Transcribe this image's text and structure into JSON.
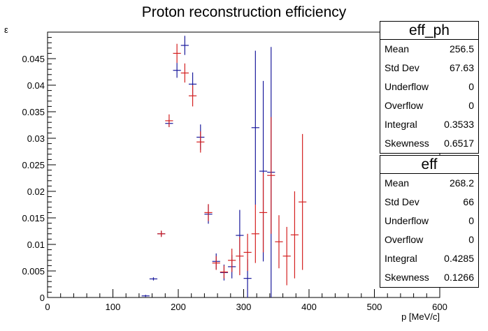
{
  "chart_data": {
    "type": "scatter",
    "title": "Proton reconstruction efficiency",
    "xlabel": "p [MeV/c]",
    "ylabel": "ε",
    "xlim": [
      0,
      600
    ],
    "ylim": [
      0,
      0.05
    ],
    "x_ticks": [
      0,
      100,
      200,
      300,
      400,
      500,
      600
    ],
    "y_ticks": [
      0,
      0.005,
      0.01,
      0.015,
      0.02,
      0.025,
      0.03,
      0.035,
      0.04,
      0.045
    ],
    "y_tick_labels": [
      "0",
      "0.005",
      "0.01",
      "0.015",
      "0.02",
      "0.025",
      "0.03",
      "0.035",
      "0.04",
      "0.045"
    ],
    "bin_width": 12,
    "grid": false,
    "series": [
      {
        "color": "#1a1a9c",
        "points": [
          {
            "x": 150,
            "y": 0.0003,
            "err": 0.0002
          },
          {
            "x": 162,
            "y": 0.0035,
            "err": 0.0003
          },
          {
            "x": 174,
            "y": 0.012,
            "err": 0.0005
          },
          {
            "x": 186,
            "y": 0.0328,
            "err": 0.0007
          },
          {
            "x": 198,
            "y": 0.0428,
            "err": 0.0014
          },
          {
            "x": 210,
            "y": 0.0475,
            "err": 0.0018
          },
          {
            "x": 222,
            "y": 0.0402,
            "err": 0.0022
          },
          {
            "x": 234,
            "y": 0.0302,
            "err": 0.0024
          },
          {
            "x": 246,
            "y": 0.0157,
            "err": 0.0018
          },
          {
            "x": 258,
            "y": 0.0068,
            "err": 0.0015
          },
          {
            "x": 270,
            "y": 0.0047,
            "err": 0.0015
          },
          {
            "x": 282,
            "y": 0.0058,
            "err": 0.0022
          },
          {
            "x": 294,
            "y": 0.0117,
            "err": 0.0048
          },
          {
            "x": 306,
            "y": 0.0036,
            "err": 0.0036
          },
          {
            "x": 318,
            "y": 0.032,
            "err": 0.0145
          },
          {
            "x": 330,
            "y": 0.0238,
            "err": 0.017
          },
          {
            "x": 342,
            "y": 0.0236,
            "err": 0.0236
          }
        ]
      },
      {
        "color": "#d42020",
        "points": [
          {
            "x": 174,
            "y": 0.012,
            "err": 0.0006
          },
          {
            "x": 186,
            "y": 0.0333,
            "err": 0.0012
          },
          {
            "x": 198,
            "y": 0.046,
            "err": 0.0018
          },
          {
            "x": 210,
            "y": 0.0423,
            "err": 0.0018
          },
          {
            "x": 222,
            "y": 0.038,
            "err": 0.002
          },
          {
            "x": 234,
            "y": 0.0293,
            "err": 0.002
          },
          {
            "x": 246,
            "y": 0.016,
            "err": 0.0016
          },
          {
            "x": 258,
            "y": 0.0065,
            "err": 0.0013
          },
          {
            "x": 270,
            "y": 0.0048,
            "err": 0.0012
          },
          {
            "x": 282,
            "y": 0.007,
            "err": 0.0022
          },
          {
            "x": 294,
            "y": 0.0078,
            "err": 0.0036
          },
          {
            "x": 306,
            "y": 0.0085,
            "err": 0.0035
          },
          {
            "x": 318,
            "y": 0.012,
            "err": 0.0055
          },
          {
            "x": 330,
            "y": 0.016,
            "err": 0.0075
          },
          {
            "x": 342,
            "y": 0.023,
            "err": 0.011
          },
          {
            "x": 354,
            "y": 0.0105,
            "err": 0.005
          },
          {
            "x": 366,
            "y": 0.0078,
            "err": 0.0055
          },
          {
            "x": 378,
            "y": 0.0118,
            "err": 0.0082
          },
          {
            "x": 390,
            "y": 0.018,
            "err": 0.0128
          }
        ]
      }
    ]
  },
  "stat_boxes": [
    {
      "title": "eff_ph",
      "rows": [
        {
          "key": "Mean",
          "value": "256.5"
        },
        {
          "key": "Std Dev",
          "value": "67.63"
        },
        {
          "key": "Underflow",
          "value": "0"
        },
        {
          "key": "Overflow",
          "value": "0"
        },
        {
          "key": "Integral",
          "value": "0.3533"
        },
        {
          "key": "Skewness",
          "value": "0.6517"
        }
      ]
    },
    {
      "title": "eff",
      "rows": [
        {
          "key": "Mean",
          "value": "268.2"
        },
        {
          "key": "Std Dev",
          "value": "66"
        },
        {
          "key": "Underflow",
          "value": "0"
        },
        {
          "key": "Overflow",
          "value": "0"
        },
        {
          "key": "Integral",
          "value": "0.4285"
        },
        {
          "key": "Skewness",
          "value": "0.1266"
        }
      ]
    }
  ]
}
